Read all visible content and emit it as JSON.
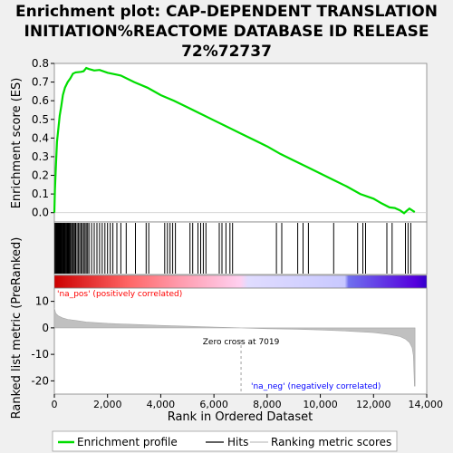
{
  "chart_data": {
    "type": "line",
    "title": "Enrichment plot: CAP-DEPENDENT TRANSLATION INITIATION%REACTOME DATABASE ID RELEASE 72%72737",
    "title_lines": [
      "Enrichment plot: CAP-DEPENDENT TRANSLATION",
      "INITIATION%REACTOME DATABASE ID RELEASE",
      "72%72737"
    ],
    "xlabel": "Rank in Ordered Dataset",
    "ylabel_top": "Enrichment score (ES)",
    "ylabel_bottom": "Ranked list metric (PreRanked)",
    "xlim": [
      0,
      14000
    ],
    "xticks": [
      0,
      2000,
      4000,
      6000,
      8000,
      10000,
      12000,
      14000
    ],
    "xtick_labels": [
      "0",
      "2,000",
      "4,000",
      "6,000",
      "8,000",
      "10,000",
      "12,000",
      "14,000"
    ],
    "es_ylim": [
      -0.05,
      0.8
    ],
    "es_yticks": [
      0.0,
      0.1,
      0.2,
      0.3,
      0.4,
      0.5,
      0.6,
      0.7,
      0.8
    ],
    "es_ytick_labels": [
      "0.0",
      "0.1",
      "0.2",
      "0.3",
      "0.4",
      "0.5",
      "0.6",
      "0.7",
      "0.8"
    ],
    "metric_ylim": [
      -25,
      15
    ],
    "metric_yticks": [
      10,
      0,
      -10,
      -20
    ],
    "metric_ytick_labels": [
      "10",
      "0",
      "-10",
      "-20"
    ],
    "es_curve": [
      [
        0,
        0.0
      ],
      [
        20,
        0.12
      ],
      [
        60,
        0.26
      ],
      [
        100,
        0.38
      ],
      [
        150,
        0.45
      ],
      [
        200,
        0.52
      ],
      [
        260,
        0.57
      ],
      [
        320,
        0.63
      ],
      [
        400,
        0.67
      ],
      [
        500,
        0.7
      ],
      [
        600,
        0.72
      ],
      [
        700,
        0.745
      ],
      [
        800,
        0.752
      ],
      [
        1000,
        0.755
      ],
      [
        1100,
        0.758
      ],
      [
        1200,
        0.775
      ],
      [
        1300,
        0.77
      ],
      [
        1500,
        0.762
      ],
      [
        1700,
        0.765
      ],
      [
        2000,
        0.75
      ],
      [
        2500,
        0.735
      ],
      [
        3000,
        0.7
      ],
      [
        3500,
        0.67
      ],
      [
        4000,
        0.63
      ],
      [
        4500,
        0.6
      ],
      [
        5000,
        0.565
      ],
      [
        5500,
        0.53
      ],
      [
        6000,
        0.495
      ],
      [
        6500,
        0.46
      ],
      [
        7000,
        0.425
      ],
      [
        7500,
        0.39
      ],
      [
        8000,
        0.355
      ],
      [
        8500,
        0.315
      ],
      [
        9000,
        0.28
      ],
      [
        9500,
        0.245
      ],
      [
        10000,
        0.21
      ],
      [
        10500,
        0.175
      ],
      [
        11000,
        0.14
      ],
      [
        11500,
        0.1
      ],
      [
        12000,
        0.075
      ],
      [
        12300,
        0.05
      ],
      [
        12600,
        0.028
      ],
      [
        12800,
        0.025
      ],
      [
        13000,
        0.012
      ],
      [
        13150,
        -0.003
      ],
      [
        13250,
        0.01
      ],
      [
        13350,
        0.022
      ],
      [
        13450,
        0.012
      ],
      [
        13550,
        0.003
      ]
    ],
    "hits": [
      20,
      45,
      70,
      95,
      120,
      145,
      170,
      195,
      220,
      245,
      270,
      295,
      320,
      345,
      370,
      395,
      420,
      450,
      480,
      510,
      540,
      570,
      600,
      640,
      680,
      720,
      760,
      800,
      850,
      900,
      950,
      1000,
      1050,
      1100,
      1150,
      1200,
      1250,
      1300,
      1400,
      1500,
      1600,
      1700,
      1800,
      1900,
      2000,
      2100,
      2200,
      2350,
      2500,
      2700,
      3050,
      3450,
      3550,
      4150,
      4250,
      4350,
      4450,
      4550,
      5100,
      5200,
      5400,
      5500,
      5600,
      5700,
      6200,
      6300,
      6450,
      6600,
      6700,
      8350,
      8550,
      9150,
      9350,
      9550,
      10500,
      11400,
      11600,
      11700,
      12500,
      12700,
      13200,
      13300,
      13400
    ],
    "zero_cross": 7019,
    "zero_cross_label": "Zero cross at 7019",
    "pos_label": "'na_pos' (positively correlated)",
    "neg_label": "'na_neg' (negatively correlated)",
    "metric_curve": [
      [
        0,
        7.5
      ],
      [
        50,
        5.5
      ],
      [
        150,
        4.5
      ],
      [
        300,
        3.8
      ],
      [
        500,
        3.2
      ],
      [
        800,
        2.8
      ],
      [
        1200,
        2.2
      ],
      [
        2000,
        1.7
      ],
      [
        3000,
        1.3
      ],
      [
        4000,
        0.9
      ],
      [
        5000,
        0.6
      ],
      [
        6000,
        0.3
      ],
      [
        7019,
        0.0
      ],
      [
        8000,
        -0.3
      ],
      [
        9000,
        -0.5
      ],
      [
        10000,
        -0.8
      ],
      [
        11000,
        -1.2
      ],
      [
        12000,
        -1.8
      ],
      [
        12600,
        -2.5
      ],
      [
        13000,
        -3.3
      ],
      [
        13200,
        -4.2
      ],
      [
        13350,
        -5.5
      ],
      [
        13450,
        -7.5
      ],
      [
        13500,
        -10.5
      ],
      [
        13540,
        -22.0
      ],
      [
        13560,
        -22.0
      ]
    ],
    "legend": [
      "Enrichment profile",
      "Hits",
      "Ranking metric scores"
    ],
    "colors": {
      "es_line": "#00dd00",
      "hit": "#000000",
      "metric_fill": "#c0c0c0",
      "zero_cross": "#a0a0a0",
      "pos_label": "#ff0000",
      "neg_label": "#0000ff",
      "background": "#f0f0f0",
      "plot_bg": "#ffffff"
    }
  }
}
